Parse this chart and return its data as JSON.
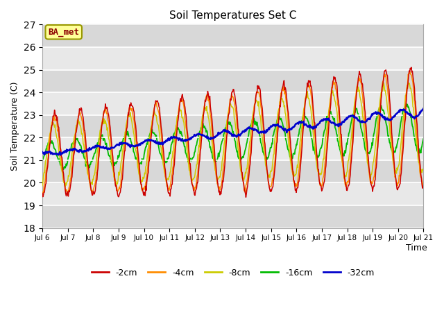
{
  "title": "Soil Temperatures Set C",
  "xlabel": "Time",
  "ylabel": "Soil Temperature (C)",
  "ylim": [
    18.0,
    27.0
  ],
  "ytick_vals": [
    18.0,
    19.0,
    20.0,
    21.0,
    22.0,
    23.0,
    24.0,
    25.0,
    26.0,
    27.0
  ],
  "xtick_labels": [
    "Jul 6",
    "Jul 7",
    "Jul 8",
    "Jul 9",
    "Jul 10",
    "Jul 11",
    "Jul 12",
    "Jul 13",
    "Jul 14",
    "Jul 15",
    "Jul 16",
    "Jul 17",
    "Jul 18",
    "Jul 19",
    "Jul 20",
    "Jul 21"
  ],
  "colors": {
    "-2cm": "#cc0000",
    "-4cm": "#ff8c00",
    "-8cm": "#cccc00",
    "-16cm": "#00bb00",
    "-32cm": "#0000cc"
  },
  "annotation_text": "BA_met",
  "annotation_fg": "#8b0000",
  "annotation_bg": "#ffff99",
  "annotation_edge": "#999900",
  "fig_bg": "#ffffff",
  "plot_bg": "#e8e8e8",
  "grid_color": "#ffffff",
  "total_days": 15,
  "n_points": 720
}
